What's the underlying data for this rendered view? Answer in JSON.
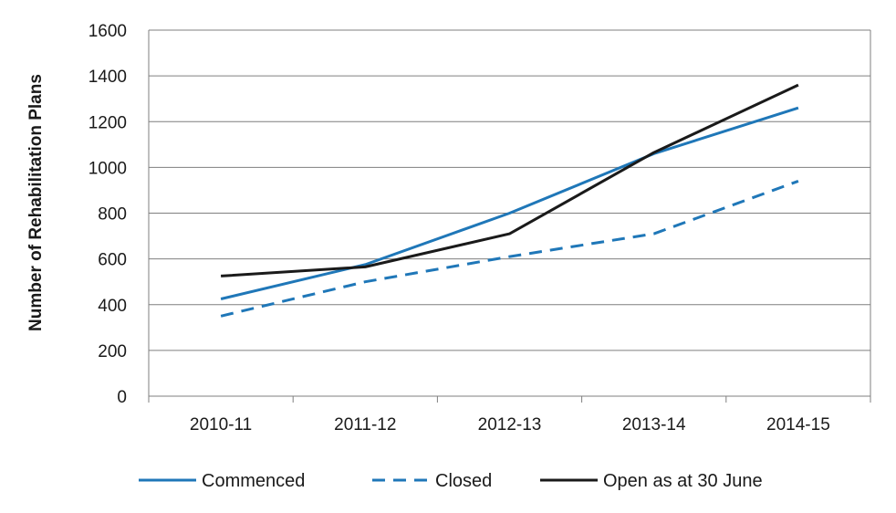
{
  "chart_data": {
    "type": "line",
    "title": "",
    "xlabel": "",
    "ylabel": "Number of Rehabilitation Plans",
    "categories": [
      "2010-11",
      "2011-12",
      "2012-13",
      "2013-14",
      "2014-15"
    ],
    "ylim": [
      0,
      1600
    ],
    "yticks": [
      0,
      200,
      400,
      600,
      800,
      1000,
      1200,
      1400,
      1600
    ],
    "grid": true,
    "legend_position": "bottom",
    "series": [
      {
        "name": "Commenced",
        "values": [
          425,
          575,
          800,
          1060,
          1260
        ],
        "color": "#1f77b8",
        "dash": "solid"
      },
      {
        "name": "Closed",
        "values": [
          350,
          500,
          610,
          710,
          940
        ],
        "color": "#1f77b8",
        "dash": "dashed"
      },
      {
        "name": "Open as at 30 June",
        "values": [
          525,
          565,
          710,
          1065,
          1360
        ],
        "color": "#1a1a1a",
        "dash": "solid"
      }
    ]
  }
}
